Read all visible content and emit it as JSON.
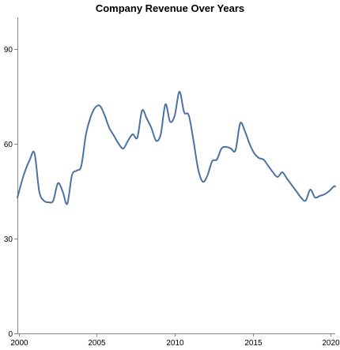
{
  "chart_data": {
    "type": "line",
    "title": "Company Revenue Over Years",
    "xlabel": "",
    "ylabel": "",
    "xlim": [
      1999.9,
      2020.3
    ],
    "ylim": [
      0,
      100
    ],
    "x_ticks": [
      2000,
      2005,
      2010,
      2015,
      2020
    ],
    "y_ticks": [
      0,
      30,
      60,
      90
    ],
    "grid": false,
    "series": [
      {
        "color": "#4c72a3",
        "x": [
          1999.9,
          2000.3,
          2000.7,
          2001.0,
          2001.3,
          2001.6,
          2001.9,
          2002.2,
          2002.5,
          2002.8,
          2003.1,
          2003.4,
          2003.7,
          2004.0,
          2004.3,
          2004.6,
          2004.9,
          2005.2,
          2005.5,
          2005.8,
          2006.1,
          2006.4,
          2006.7,
          2007.0,
          2007.3,
          2007.6,
          2007.9,
          2008.2,
          2008.5,
          2008.8,
          2009.1,
          2009.4,
          2009.7,
          2010.0,
          2010.3,
          2010.6,
          2010.9,
          2011.2,
          2011.5,
          2011.8,
          2012.1,
          2012.4,
          2012.7,
          2013.0,
          2013.3,
          2013.6,
          2013.9,
          2014.2,
          2014.5,
          2014.8,
          2015.1,
          2015.4,
          2015.7,
          2016.0,
          2016.3,
          2016.6,
          2016.9,
          2017.2,
          2017.5,
          2017.8,
          2018.1,
          2018.4,
          2018.7,
          2019.0,
          2019.3,
          2019.6,
          2019.9,
          2020.2,
          2020.3
        ],
        "y": [
          43.0,
          50.0,
          55.0,
          57.0,
          45.0,
          42.0,
          41.5,
          42.0,
          47.5,
          45.0,
          41.0,
          50.0,
          51.5,
          53.0,
          63.0,
          68.5,
          71.5,
          72.0,
          69.0,
          65.0,
          62.5,
          60.0,
          58.5,
          61.0,
          63.0,
          62.0,
          70.5,
          68.0,
          65.0,
          61.0,
          63.0,
          72.5,
          67.0,
          69.0,
          76.5,
          70.0,
          69.0,
          61.0,
          52.0,
          48.0,
          50.0,
          54.5,
          55.0,
          58.5,
          59.0,
          58.5,
          58.0,
          66.5,
          64.0,
          60.0,
          57.0,
          55.5,
          55.0,
          53.0,
          51.0,
          49.5,
          51.0,
          49.0,
          47.0,
          45.0,
          43.0,
          42.0,
          45.5,
          43.0,
          43.5,
          44.0,
          45.0,
          46.5,
          46.5
        ]
      }
    ]
  }
}
